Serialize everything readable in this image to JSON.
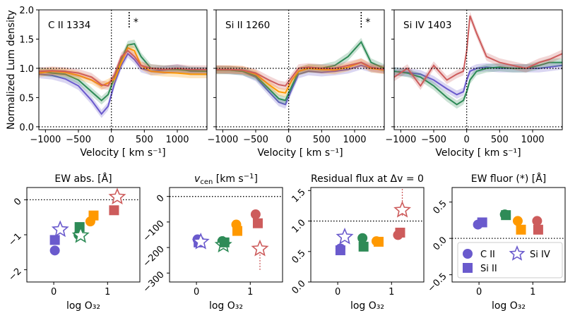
{
  "colors": {
    "orange": "#ff9900",
    "green": "#2e8b57",
    "purple": "#6a5acd",
    "red": "#cd5c5c"
  },
  "chart_data": [
    {
      "type": "line",
      "title": "C II 1334",
      "xlabel": "Velocity [ km s⁻¹]",
      "ylabel": "Normalized Lum density",
      "xlim": [
        -1100,
        1450
      ],
      "ylim": [
        -0.05,
        2.0
      ],
      "xticks": [
        "−1000",
        "−500",
        "0",
        "500",
        "1000"
      ],
      "xtick_values": [
        -1000,
        -500,
        0,
        500,
        1000
      ],
      "yticks": [
        "0.0",
        "0.5",
        "1.0",
        "1.5",
        "2.0"
      ],
      "ytick_values": [
        0.0,
        0.5,
        1.0,
        1.5,
        2.0
      ],
      "marker_label": "*",
      "marker_x": 270,
      "x": [
        -1100,
        -900,
        -700,
        -500,
        -300,
        -150,
        -50,
        50,
        150,
        250,
        350,
        450,
        600,
        800,
        1000,
        1200,
        1450
      ],
      "series": [
        {
          "name": "purple",
          "color": "purple",
          "values": [
            0.9,
            0.88,
            0.82,
            0.7,
            0.45,
            0.22,
            0.35,
            0.75,
            1.05,
            1.25,
            1.15,
            1.0,
            0.95,
            0.97,
            1.0,
            0.95,
            0.95
          ]
        },
        {
          "name": "green",
          "color": "green",
          "values": [
            0.95,
            0.92,
            0.9,
            0.8,
            0.6,
            0.45,
            0.55,
            0.85,
            1.15,
            1.4,
            1.42,
            1.2,
            1.0,
            0.98,
            0.98,
            0.96,
            0.95
          ]
        },
        {
          "name": "orange",
          "color": "orange",
          "values": [
            0.92,
            0.95,
            0.93,
            0.88,
            0.8,
            0.7,
            0.75,
            0.82,
            1.1,
            1.35,
            1.3,
            1.05,
            0.95,
            0.93,
            0.92,
            0.9,
            0.9
          ]
        },
        {
          "name": "red",
          "color": "red",
          "values": [
            0.95,
            0.96,
            0.95,
            0.92,
            0.85,
            0.72,
            0.7,
            0.9,
            1.2,
            1.3,
            1.2,
            1.05,
            1.0,
            0.98,
            1.0,
            0.98,
            0.98
          ]
        }
      ]
    },
    {
      "type": "line",
      "title": "Si II 1260",
      "xlabel": "Velocity [ km s⁻¹]",
      "xlim": [
        -1100,
        1450
      ],
      "ylim": [
        -0.05,
        2.0
      ],
      "xticks": [
        "−1000",
        "−500",
        "0",
        "500",
        "1000"
      ],
      "xtick_values": [
        -1000,
        -500,
        0,
        500,
        1000
      ],
      "marker_label": "*",
      "marker_x": 1100,
      "x": [
        -1100,
        -900,
        -700,
        -500,
        -300,
        -150,
        -50,
        50,
        150,
        300,
        500,
        700,
        900,
        1100,
        1250,
        1450
      ],
      "series": [
        {
          "name": "purple",
          "color": "purple",
          "values": [
            0.98,
            0.97,
            0.95,
            0.85,
            0.6,
            0.42,
            0.38,
            0.65,
            0.9,
            0.95,
            0.93,
            0.95,
            0.98,
            1.05,
            1.0,
            0.98
          ]
        },
        {
          "name": "green",
          "color": "green",
          "values": [
            0.97,
            0.97,
            0.95,
            0.87,
            0.65,
            0.48,
            0.45,
            0.7,
            0.95,
            1.0,
            1.0,
            1.05,
            1.2,
            1.45,
            1.1,
            1.0
          ]
        },
        {
          "name": "orange",
          "color": "orange",
          "values": [
            0.98,
            0.98,
            0.97,
            0.9,
            0.72,
            0.6,
            0.58,
            0.8,
            0.95,
            1.0,
            0.98,
            0.97,
            1.02,
            1.1,
            1.0,
            0.97
          ]
        },
        {
          "name": "red",
          "color": "red",
          "values": [
            0.98,
            0.98,
            0.97,
            0.92,
            0.8,
            0.72,
            0.7,
            0.85,
            1.0,
            1.02,
            1.0,
            1.0,
            1.05,
            1.1,
            1.02,
            0.98
          ]
        }
      ]
    },
    {
      "type": "line",
      "title": "Si IV 1403",
      "xlabel": "Velocity [ km s⁻¹]",
      "xlim": [
        -1100,
        1450
      ],
      "ylim": [
        -0.05,
        2.0
      ],
      "xticks": [
        "−1000",
        "−500",
        "0",
        "500",
        "1000"
      ],
      "xtick_values": [
        -1000,
        -500,
        0,
        500,
        1000
      ],
      "x": [
        -1100,
        -900,
        -700,
        -500,
        -300,
        -150,
        -50,
        0,
        50,
        150,
        300,
        500,
        700,
        900,
        1100,
        1250,
        1450
      ],
      "series": [
        {
          "name": "purple",
          "color": "purple",
          "values": [
            0.95,
            0.93,
            0.9,
            0.8,
            0.65,
            0.55,
            0.6,
            0.8,
            0.95,
            1.0,
            1.02,
            1.0,
            1.0,
            1.0,
            1.0,
            1.02,
            1.05
          ]
        },
        {
          "name": "green",
          "color": "green",
          "values": [
            0.95,
            0.92,
            0.85,
            0.7,
            0.5,
            0.38,
            0.45,
            0.6,
            0.8,
            0.95,
            1.0,
            1.02,
            1.0,
            1.0,
            1.05,
            1.1,
            1.1
          ]
        },
        {
          "name": "red",
          "color": "red",
          "values": [
            0.85,
            1.0,
            0.7,
            1.05,
            0.8,
            0.9,
            0.95,
            1.3,
            1.9,
            1.6,
            1.2,
            1.1,
            1.05,
            1.0,
            1.1,
            1.15,
            1.25
          ]
        }
      ]
    },
    {
      "type": "scatter",
      "title": "EW abs. [Å]",
      "xlabel": "log O₃₂",
      "xlim": [
        -0.5,
        1.6
      ],
      "ylim": [
        -2.35,
        0.35
      ],
      "xticks": [
        "0",
        "1"
      ],
      "xtick_values": [
        0,
        1
      ],
      "yticks": [
        "0",
        "−1",
        "−2"
      ],
      "ytick_values": [
        0,
        -1,
        -2
      ],
      "hline": 0,
      "points": [
        {
          "x": 0.02,
          "y": -1.45,
          "color": "purple",
          "marker": "circle"
        },
        {
          "x": 0.02,
          "y": -1.15,
          "color": "purple",
          "marker": "square"
        },
        {
          "x": 0.12,
          "y": -0.85,
          "color": "purple",
          "marker": "star"
        },
        {
          "x": 0.46,
          "y": -1.0,
          "color": "green",
          "marker": "circle"
        },
        {
          "x": 0.48,
          "y": -0.78,
          "color": "green",
          "marker": "square"
        },
        {
          "x": 0.5,
          "y": -1.02,
          "color": "green",
          "marker": "star"
        },
        {
          "x": 0.68,
          "y": -0.62,
          "color": "orange",
          "marker": "circle"
        },
        {
          "x": 0.74,
          "y": -0.45,
          "color": "orange",
          "marker": "square"
        },
        {
          "x": 1.12,
          "y": -0.3,
          "color": "red",
          "marker": "square"
        },
        {
          "x": 1.18,
          "y": 0.08,
          "color": "red",
          "marker": "star"
        }
      ]
    },
    {
      "type": "scatter",
      "title": "v_cen [km s⁻¹]",
      "title_main": "v",
      "title_sub": "cen",
      "title_rest": " [km s",
      "title_sup": "−1",
      "title_end": "]",
      "xlabel": "log O₃₂",
      "xlim": [
        -0.5,
        1.6
      ],
      "ylim": [
        -335,
        35
      ],
      "xticks": [
        "0",
        "1"
      ],
      "xtick_values": [
        0,
        1
      ],
      "yticks": [
        "0",
        "−100",
        "−200",
        "−300"
      ],
      "ytick_values": [
        0,
        -100,
        -200,
        -300
      ],
      "hline": 0,
      "points": [
        {
          "x": 0.02,
          "y": -168,
          "color": "purple",
          "marker": "circle"
        },
        {
          "x": 0.04,
          "y": -180,
          "color": "purple",
          "marker": "square"
        },
        {
          "x": 0.08,
          "y": -178,
          "color": "purple",
          "marker": "star"
        },
        {
          "x": 0.48,
          "y": -175,
          "color": "green",
          "marker": "circle"
        },
        {
          "x": 0.5,
          "y": -190,
          "color": "green",
          "marker": "star"
        },
        {
          "x": 0.52,
          "y": -180,
          "color": "green",
          "marker": "square"
        },
        {
          "x": 0.74,
          "y": -110,
          "color": "orange",
          "marker": "circle"
        },
        {
          "x": 0.76,
          "y": -135,
          "color": "orange",
          "marker": "square"
        },
        {
          "x": 1.1,
          "y": -70,
          "color": "red",
          "marker": "circle"
        },
        {
          "x": 1.14,
          "y": -105,
          "color": "red",
          "marker": "square"
        },
        {
          "x": 1.18,
          "y": -205,
          "color": "red",
          "marker": "star"
        }
      ]
    },
    {
      "type": "scatter",
      "title": "Residual flux at Δv = 0",
      "xlabel": "log O₃₂",
      "xlim": [
        -0.5,
        1.6
      ],
      "ylim": [
        0.0,
        1.55
      ],
      "xticks": [
        "0",
        "1"
      ],
      "xtick_values": [
        0,
        1
      ],
      "yticks": [
        "0.0",
        "0.5",
        "1.0",
        "1.5"
      ],
      "ytick_values": [
        0.0,
        0.5,
        1.0,
        1.5
      ],
      "hline": 1.0,
      "points": [
        {
          "x": 0.05,
          "y": 0.55,
          "color": "purple",
          "marker": "circle"
        },
        {
          "x": 0.05,
          "y": 0.52,
          "color": "purple",
          "marker": "square"
        },
        {
          "x": 0.13,
          "y": 0.74,
          "color": "purple",
          "marker": "star"
        },
        {
          "x": 0.46,
          "y": 0.72,
          "color": "green",
          "marker": "circle"
        },
        {
          "x": 0.48,
          "y": 0.58,
          "color": "green",
          "marker": "square"
        },
        {
          "x": 0.72,
          "y": 0.67,
          "color": "orange",
          "marker": "circle"
        },
        {
          "x": 0.76,
          "y": 0.66,
          "color": "orange",
          "marker": "square"
        },
        {
          "x": 1.12,
          "y": 0.77,
          "color": "red",
          "marker": "circle"
        },
        {
          "x": 1.16,
          "y": 0.81,
          "color": "red",
          "marker": "square"
        },
        {
          "x": 1.2,
          "y": 1.18,
          "color": "red",
          "marker": "star"
        }
      ]
    },
    {
      "type": "scatter",
      "title": "EW fluor (*) [Å]",
      "xlabel": "log O₃₂",
      "xlim": [
        -0.5,
        1.6
      ],
      "ylim": [
        -0.6,
        0.7
      ],
      "xticks": [
        "0",
        "1"
      ],
      "xtick_values": [
        0,
        1
      ],
      "yticks": [
        "0.5",
        "0.0",
        "−0.5"
      ],
      "ytick_values": [
        0.5,
        0.0,
        -0.5
      ],
      "hline": 0,
      "points": [
        {
          "x": -0.02,
          "y": 0.19,
          "color": "purple",
          "marker": "circle"
        },
        {
          "x": 0.06,
          "y": 0.22,
          "color": "purple",
          "marker": "square"
        },
        {
          "x": 0.48,
          "y": 0.33,
          "color": "green",
          "marker": "circle"
        },
        {
          "x": 0.5,
          "y": 0.32,
          "color": "green",
          "marker": "square"
        },
        {
          "x": 0.72,
          "y": 0.24,
          "color": "orange",
          "marker": "circle"
        },
        {
          "x": 0.78,
          "y": 0.12,
          "color": "orange",
          "marker": "square"
        },
        {
          "x": 1.08,
          "y": 0.24,
          "color": "red",
          "marker": "circle"
        },
        {
          "x": 1.1,
          "y": 0.12,
          "color": "red",
          "marker": "square"
        }
      ],
      "legend": [
        {
          "label": "C II",
          "marker": "circle"
        },
        {
          "label": "Si II",
          "marker": "square"
        },
        {
          "label": "Si IV",
          "marker": "star"
        }
      ]
    }
  ]
}
